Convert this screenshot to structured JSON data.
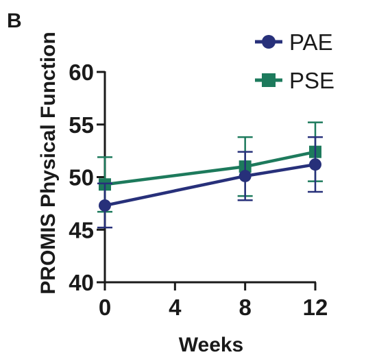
{
  "panel_label": "B",
  "chart_data": {
    "type": "line",
    "title": "",
    "xlabel": "Weeks",
    "ylabel": "PROMIS Physical Function",
    "x_ticks": [
      "0",
      "4",
      "8",
      "12"
    ],
    "y_ticks": [
      "40",
      "45",
      "50",
      "55",
      "60"
    ],
    "xlim": [
      0,
      12
    ],
    "ylim": [
      40,
      60
    ],
    "grid": false,
    "legend_position": "top-right",
    "series": [
      {
        "name": "PAE",
        "marker": "circle",
        "color": "#27307a",
        "x": [
          0,
          8,
          12
        ],
        "y": [
          47.3,
          50.1,
          51.2
        ],
        "error": [
          2.1,
          2.3,
          2.6
        ]
      },
      {
        "name": "PSE",
        "marker": "square",
        "color": "#1d7a5c",
        "x": [
          0,
          8,
          12
        ],
        "y": [
          49.3,
          51.0,
          52.4
        ],
        "error": [
          2.6,
          2.8,
          2.8
        ]
      }
    ]
  }
}
